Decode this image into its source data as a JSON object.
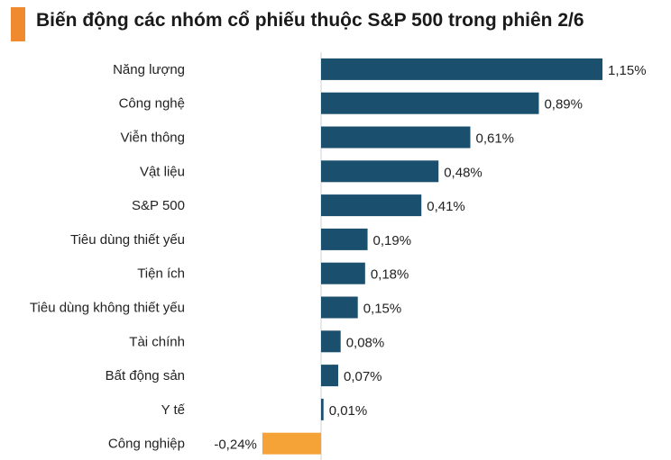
{
  "chart_data": {
    "type": "bar",
    "orientation": "horizontal",
    "title": "Biến động các nhóm cổ phiếu thuộc S&P 500 trong phiên 2/6",
    "categories": [
      "Năng lượng",
      "Công nghệ",
      "Viễn thông",
      "Vật liệu",
      "S&P 500",
      "Tiêu dùng thiết yếu",
      "Tiện ích",
      "Tiêu dùng không thiết yếu",
      "Tài chính",
      "Bất động sản",
      "Y tế",
      "Công nghiệp"
    ],
    "values": [
      1.15,
      0.89,
      0.61,
      0.48,
      0.41,
      0.19,
      0.18,
      0.15,
      0.08,
      0.07,
      0.01,
      -0.24
    ],
    "value_labels": [
      "1,15%",
      "0,89%",
      "0,61%",
      "0,48%",
      "0,41%",
      "0,19%",
      "0,18%",
      "0,15%",
      "0,08%",
      "0,07%",
      "0,01%",
      "-0,24%"
    ],
    "xlim": [
      -0.3,
      1.3
    ],
    "grid": false,
    "colors": {
      "positive": "#1b4f6e",
      "negative": "#f5a236",
      "accent": "#f08a2e"
    }
  }
}
